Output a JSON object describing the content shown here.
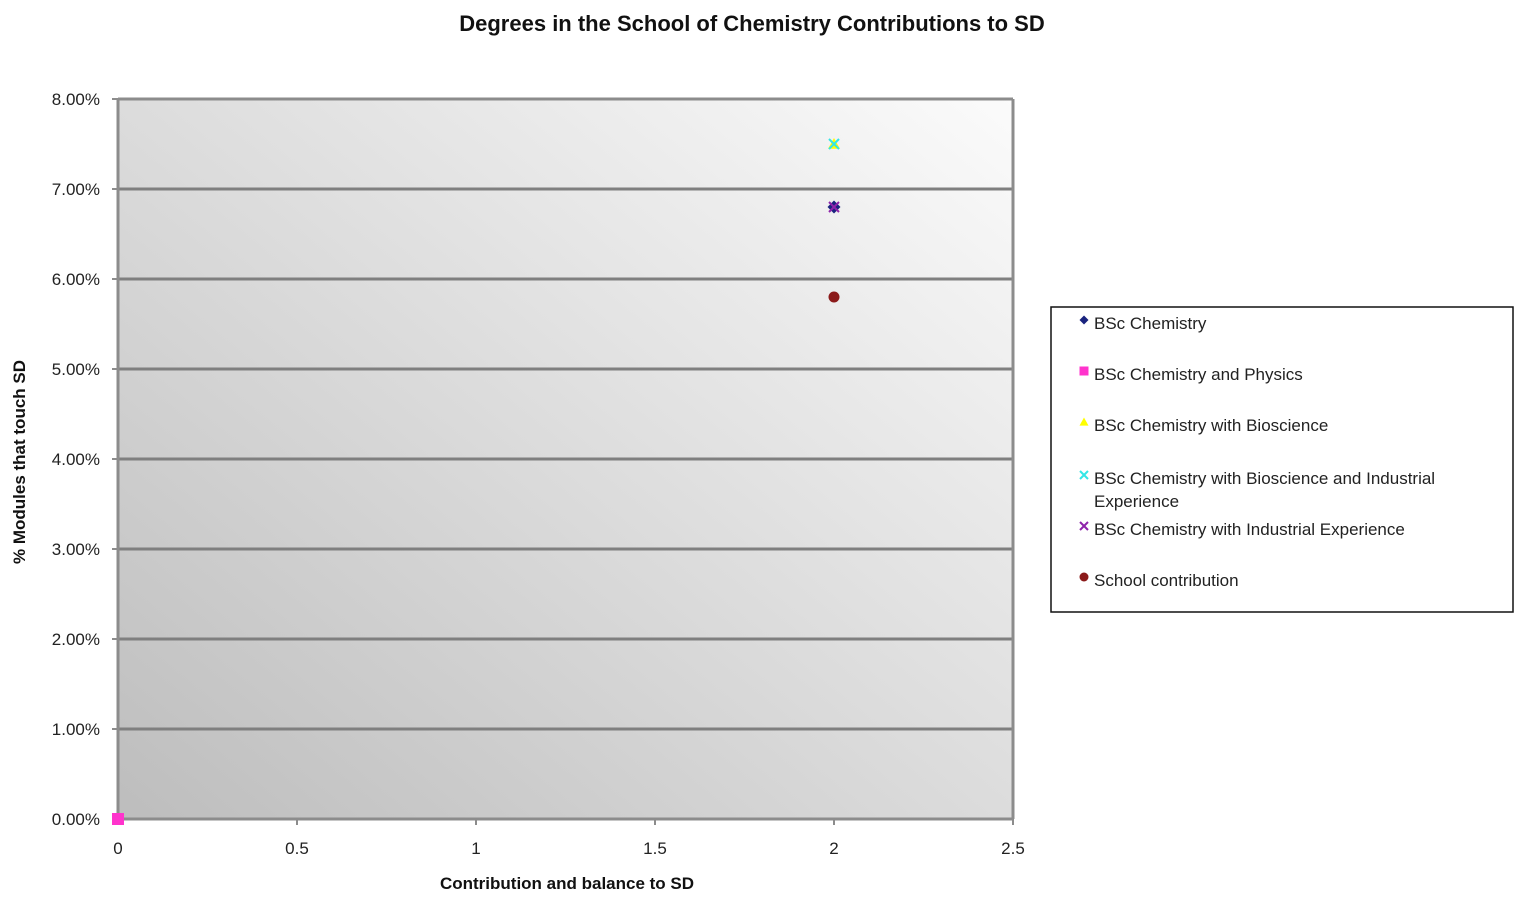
{
  "chart_data": {
    "type": "scatter",
    "title": "Degrees in the School of Chemistry Contributions to SD",
    "xlabel": "Contribution and balance to SD",
    "ylabel": "% Modules that touch SD",
    "xlim": [
      0,
      2.5
    ],
    "ylim": [
      0,
      0.08
    ],
    "x_ticks": [
      {
        "value": 0,
        "label": "0"
      },
      {
        "value": 0.5,
        "label": "0.5"
      },
      {
        "value": 1,
        "label": "1"
      },
      {
        "value": 1.5,
        "label": "1.5"
      },
      {
        "value": 2,
        "label": "2"
      },
      {
        "value": 2.5,
        "label": "2.5"
      }
    ],
    "y_ticks": [
      {
        "value": 0,
        "label": "0.00%"
      },
      {
        "value": 0.01,
        "label": "1.00%"
      },
      {
        "value": 0.02,
        "label": "2.00%"
      },
      {
        "value": 0.03,
        "label": "3.00%"
      },
      {
        "value": 0.04,
        "label": "4.00%"
      },
      {
        "value": 0.05,
        "label": "5.00%"
      },
      {
        "value": 0.06,
        "label": "6.00%"
      },
      {
        "value": 0.07,
        "label": "7.00%"
      },
      {
        "value": 0.08,
        "label": "8.00%"
      }
    ],
    "grid": "horizontal",
    "legend_position": "right",
    "series": [
      {
        "name": "BSc Chemistry",
        "marker": "diamond",
        "color": "#1a237e",
        "points": [
          {
            "x": 2,
            "y": 0.068
          }
        ]
      },
      {
        "name": "BSc Chemistry and Physics",
        "marker": "square",
        "color": "#ff33cc",
        "points": [
          {
            "x": 0,
            "y": 0
          }
        ]
      },
      {
        "name": "BSc Chemistry with Bioscience",
        "marker": "triangle",
        "color": "#ffff00",
        "points": [
          {
            "x": 2,
            "y": 0.075
          }
        ]
      },
      {
        "name": "BSc Chemistry with Bioscience and Industrial Experience",
        "marker": "x",
        "color": "#33e6e6",
        "points": [
          {
            "x": 2,
            "y": 0.075
          }
        ]
      },
      {
        "name": "BSc Chemistry with Industrial Experience",
        "marker": "x",
        "color": "#8e24aa",
        "points": [
          {
            "x": 2,
            "y": 0.068
          }
        ]
      },
      {
        "name": "School contribution",
        "marker": "circle",
        "color": "#8b1a1a",
        "points": [
          {
            "x": 2,
            "y": 0.058
          }
        ]
      }
    ]
  }
}
